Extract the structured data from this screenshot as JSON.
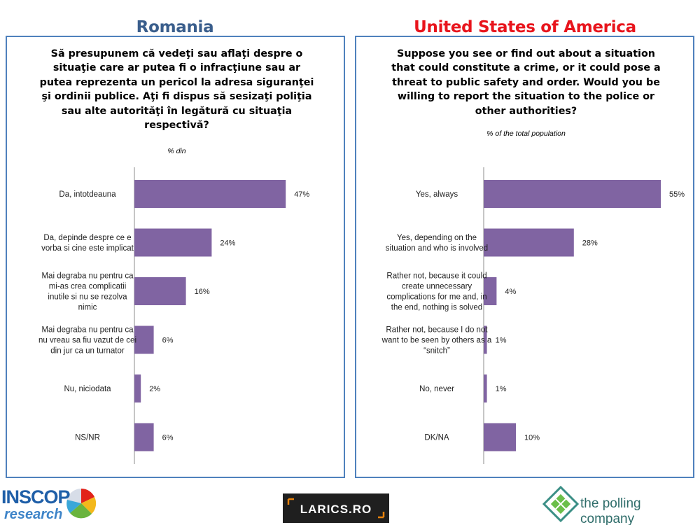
{
  "header": {
    "left_country": "Romania",
    "right_country": "United States of America"
  },
  "colors": {
    "bar": "#8064a2",
    "panel_border": "#4f81bd",
    "romania_title": "#3a5e8c",
    "usa_title": "#e8141c"
  },
  "romania": {
    "question": "Să presupunem că vedeţi sau aflaţi despre o situaţie care ar putea fi o infracţiune sau ar putea reprezenta un pericol la adresa siguranţei şi ordinii publice. Aţi fi dispus să sesizaţi poliţia sau alte autorităţi în legătură cu situaţia respectivă?",
    "subtitle": "% din"
  },
  "usa": {
    "question": "Suppose you see or find out about a situation that could constitute a crime, or it could pose a threat to public safety and order. Would you be willing to report the situation to the police or other authorities?",
    "subtitle": "% of the total population"
  },
  "chart_data": [
    {
      "type": "bar",
      "orientation": "horizontal",
      "title": "Romania",
      "categories": [
        [
          "Da, intotdeauna"
        ],
        [
          "Da, depinde despre ce e",
          "vorba si cine este implicat"
        ],
        [
          "Mai degraba nu pentru ca",
          "mi-as crea complicatii",
          "inutile si nu se rezolva",
          "nimic"
        ],
        [
          "Mai degraba nu pentru ca",
          "nu vreau sa fiu vazut de cei",
          "din jur ca un turnator"
        ],
        [
          "Nu, niciodata"
        ],
        [
          "NS/NR"
        ]
      ],
      "values": [
        47,
        24,
        16,
        6,
        2,
        6
      ],
      "value_labels": [
        "47%",
        "24%",
        "16%",
        "6%",
        "2%",
        "6%"
      ],
      "xlim": [
        0,
        55
      ],
      "grid": false,
      "legend": "none"
    },
    {
      "type": "bar",
      "orientation": "horizontal",
      "title": "United States of America",
      "categories": [
        [
          "Yes, always"
        ],
        [
          "Yes, depending on the",
          "situation and who is involved"
        ],
        [
          "Rather not, because it could",
          "create unnecessary",
          "complications for me and, in",
          "the end, nothing is solved"
        ],
        [
          "Rather not, because I do not",
          "want to be seen by others as a",
          "“snitch”"
        ],
        [
          "No, never"
        ],
        [
          "DK/NA"
        ]
      ],
      "values": [
        55,
        28,
        4,
        1,
        1,
        10
      ],
      "value_labels": [
        "55%",
        "28%",
        "4%",
        "1%",
        "1%",
        "10%"
      ],
      "xlim": [
        0,
        55
      ],
      "grid": false,
      "legend": "none"
    }
  ],
  "logos": {
    "inscop_top": "INSCOP",
    "inscop_bottom": "research",
    "larics": "LARICS.RO",
    "polling": "the polling company"
  }
}
